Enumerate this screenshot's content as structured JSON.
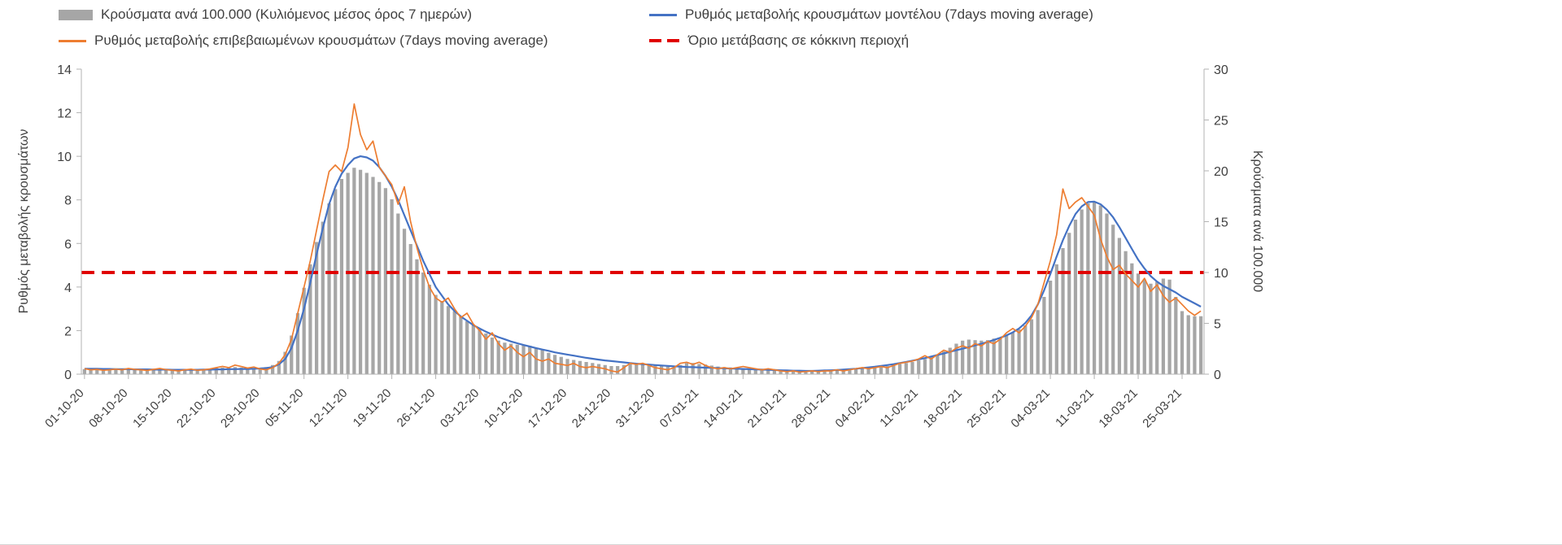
{
  "legend": {
    "bars": "Κρούσματα ανά 100.000 (Κυλιόμενος μέσος όρος 7 ημερών)",
    "model": "Ρυθμός μεταβολής κρουσμάτων μοντέλου (7days moving average)",
    "confirmed": "Ρυθμός μεταβολής επιβεβαιωμένων κρουσμάτων (7days moving average)",
    "threshold": "Όριο μετάβασης σε κόκκινη περιοχή"
  },
  "colors": {
    "bars": "#a6a6a6",
    "model": "#4472c4",
    "confirmed": "#ed7d31",
    "threshold": "#e00000"
  },
  "chart_data": {
    "type": "bar",
    "subtype": "combo-bar-line-daily",
    "left_axis": {
      "label": "Ρυθμός μεταβολής κρουσμάτων",
      "min": 0,
      "max": 14,
      "ticks": [
        0,
        2,
        4,
        6,
        8,
        10,
        12,
        14
      ]
    },
    "right_axis": {
      "label": "Κρούσματα ανά 100.000",
      "min": 0,
      "max": 30,
      "ticks": [
        0,
        5,
        10,
        15,
        20,
        25,
        30
      ]
    },
    "x_ticks": {
      "interval_days": 7,
      "labels": [
        "01-10-20",
        "08-10-20",
        "15-10-20",
        "22-10-20",
        "29-10-20",
        "05-11-20",
        "12-11-20",
        "19-11-20",
        "26-11-20",
        "03-12-20",
        "10-12-20",
        "17-12-20",
        "24-12-20",
        "31-12-20",
        "07-01-21",
        "14-01-21",
        "21-01-21",
        "28-01-21",
        "04-02-21",
        "11-02-21",
        "18-02-21",
        "25-02-21",
        "04-03-21",
        "11-03-21",
        "18-03-21",
        "25-03-21"
      ]
    },
    "threshold": {
      "name": "Όριο μετάβασης σε κόκκινη περιοχή",
      "axis": "right",
      "value": 10,
      "color": "#e00000"
    },
    "bars": {
      "name": "Κρούσματα ανά 100.000 (Κυλιόμενος μέσος όρος 7 ημερών)",
      "axis": "right",
      "color": "#a6a6a6",
      "values": [
        0.5,
        0.5,
        0.5,
        0.5,
        0.5,
        0.5,
        0.5,
        0.5,
        0.5,
        0.5,
        0.5,
        0.5,
        0.5,
        0.5,
        0.45,
        0.45,
        0.45,
        0.45,
        0.5,
        0.5,
        0.55,
        0.6,
        0.65,
        0.7,
        0.7,
        0.65,
        0.6,
        0.6,
        0.6,
        0.7,
        0.9,
        1.3,
        2.2,
        3.8,
        6.0,
        8.5,
        10.8,
        13.0,
        15.0,
        16.8,
        18.2,
        19.2,
        19.8,
        20.3,
        20.1,
        19.8,
        19.4,
        18.9,
        18.3,
        17.2,
        15.8,
        14.3,
        12.8,
        11.3,
        10.0,
        8.8,
        7.8,
        7.2,
        6.7,
        6.2,
        5.7,
        5.2,
        4.8,
        4.4,
        4.0,
        3.6,
        3.3,
        3.1,
        3.0,
        2.9,
        2.9,
        2.8,
        2.6,
        2.4,
        2.1,
        1.9,
        1.7,
        1.5,
        1.4,
        1.3,
        1.2,
        1.1,
        1.0,
        0.9,
        0.8,
        0.8,
        0.9,
        1.0,
        1.0,
        1.0,
        0.9,
        0.85,
        0.8,
        0.75,
        0.75,
        0.9,
        1.1,
        1.1,
        1.0,
        0.95,
        0.85,
        0.75,
        0.7,
        0.65,
        0.6,
        0.55,
        0.5,
        0.5,
        0.45,
        0.45,
        0.4,
        0.4,
        0.38,
        0.35,
        0.33,
        0.33,
        0.33,
        0.33,
        0.35,
        0.35,
        0.38,
        0.4,
        0.45,
        0.5,
        0.55,
        0.6,
        0.65,
        0.72,
        0.8,
        0.9,
        1.0,
        1.1,
        1.2,
        1.35,
        1.5,
        1.7,
        1.95,
        2.25,
        2.6,
        3.0,
        3.3,
        3.4,
        3.35,
        3.3,
        3.35,
        3.5,
        3.6,
        3.85,
        4.1,
        4.4,
        4.8,
        5.4,
        6.3,
        7.6,
        9.2,
        10.8,
        12.4,
        13.9,
        15.2,
        16.2,
        16.8,
        17.0,
        16.6,
        15.8,
        14.7,
        13.4,
        12.1,
        10.9,
        9.9,
        9.3,
        8.9,
        9.1,
        9.4,
        9.3,
        7.6,
        6.2,
        5.8,
        5.7,
        5.7
      ]
    },
    "series": [
      {
        "id": "model",
        "name": "Ρυθμός μεταβολής κρουσμάτων μοντέλου (7days moving average)",
        "axis": "left",
        "color": "#4472c4",
        "values": [
          0.25,
          0.25,
          0.25,
          0.24,
          0.24,
          0.23,
          0.23,
          0.23,
          0.22,
          0.22,
          0.22,
          0.21,
          0.21,
          0.21,
          0.2,
          0.2,
          0.2,
          0.2,
          0.2,
          0.21,
          0.21,
          0.22,
          0.22,
          0.23,
          0.23,
          0.24,
          0.24,
          0.25,
          0.26,
          0.28,
          0.32,
          0.45,
          0.7,
          1.2,
          2.0,
          3.0,
          4.2,
          5.5,
          6.7,
          7.8,
          8.6,
          9.2,
          9.6,
          9.9,
          10.0,
          9.95,
          9.8,
          9.5,
          9.1,
          8.6,
          8.0,
          7.3,
          6.6,
          5.9,
          5.2,
          4.6,
          4.0,
          3.6,
          3.2,
          2.9,
          2.65,
          2.45,
          2.25,
          2.1,
          1.95,
          1.82,
          1.7,
          1.6,
          1.5,
          1.42,
          1.34,
          1.27,
          1.2,
          1.13,
          1.07,
          1.0,
          0.95,
          0.9,
          0.85,
          0.8,
          0.75,
          0.71,
          0.67,
          0.63,
          0.6,
          0.57,
          0.54,
          0.51,
          0.48,
          0.46,
          0.44,
          0.42,
          0.4,
          0.38,
          0.36,
          0.35,
          0.33,
          0.32,
          0.31,
          0.3,
          0.29,
          0.28,
          0.27,
          0.26,
          0.25,
          0.24,
          0.23,
          0.22,
          0.21,
          0.2,
          0.19,
          0.18,
          0.17,
          0.16,
          0.16,
          0.15,
          0.15,
          0.16,
          0.17,
          0.18,
          0.19,
          0.21,
          0.23,
          0.25,
          0.28,
          0.31,
          0.34,
          0.38,
          0.42,
          0.46,
          0.51,
          0.56,
          0.62,
          0.68,
          0.74,
          0.81,
          0.88,
          0.95,
          1.03,
          1.1,
          1.17,
          1.24,
          1.32,
          1.4,
          1.48,
          1.57,
          1.67,
          1.78,
          1.92,
          2.1,
          2.35,
          2.7,
          3.2,
          3.85,
          4.6,
          5.4,
          6.15,
          6.8,
          7.35,
          7.7,
          7.9,
          7.92,
          7.8,
          7.55,
          7.2,
          6.75,
          6.25,
          5.75,
          5.25,
          4.85,
          4.5,
          4.25,
          4.05,
          3.9,
          3.75,
          3.55,
          3.4,
          3.25,
          3.1
        ]
      },
      {
        "id": "confirmed",
        "name": "Ρυθμός μεταβολής επιβεβαιωμένων κρουσμάτων (7days moving average)",
        "axis": "left",
        "color": "#ed7d31",
        "values": [
          0.25,
          0.2,
          0.22,
          0.18,
          0.2,
          0.23,
          0.2,
          0.26,
          0.22,
          0.2,
          0.17,
          0.22,
          0.26,
          0.21,
          0.18,
          0.15,
          0.2,
          0.23,
          0.18,
          0.2,
          0.24,
          0.3,
          0.36,
          0.3,
          0.42,
          0.35,
          0.28,
          0.33,
          0.24,
          0.2,
          0.3,
          0.5,
          0.9,
          1.6,
          2.8,
          4.0,
          5.2,
          6.6,
          8.0,
          9.3,
          9.6,
          9.3,
          10.4,
          12.4,
          11.0,
          10.3,
          10.7,
          9.5,
          9.1,
          8.7,
          7.8,
          8.6,
          7.0,
          5.8,
          4.8,
          4.0,
          3.5,
          3.3,
          3.5,
          3.0,
          2.6,
          2.8,
          2.3,
          2.0,
          1.6,
          1.9,
          1.4,
          1.1,
          1.3,
          1.0,
          0.8,
          1.0,
          0.7,
          0.6,
          0.7,
          0.5,
          0.45,
          0.4,
          0.5,
          0.35,
          0.3,
          0.35,
          0.3,
          0.25,
          0.15,
          0.1,
          0.3,
          0.5,
          0.45,
          0.5,
          0.4,
          0.3,
          0.25,
          0.2,
          0.3,
          0.5,
          0.55,
          0.45,
          0.55,
          0.4,
          0.3,
          0.25,
          0.3,
          0.25,
          0.3,
          0.35,
          0.3,
          0.25,
          0.2,
          0.25,
          0.2,
          0.15,
          0.12,
          0.15,
          0.1,
          0.12,
          0.15,
          0.12,
          0.15,
          0.15,
          0.2,
          0.15,
          0.2,
          0.25,
          0.3,
          0.25,
          0.3,
          0.35,
          0.3,
          0.4,
          0.5,
          0.55,
          0.6,
          0.7,
          0.85,
          0.7,
          0.9,
          1.1,
          1.0,
          1.2,
          1.3,
          1.2,
          1.4,
          1.3,
          1.5,
          1.4,
          1.6,
          1.9,
          2.1,
          1.9,
          2.2,
          2.6,
          3.2,
          4.2,
          5.2,
          6.4,
          8.5,
          7.6,
          7.9,
          8.1,
          7.7,
          7.3,
          6.2,
          5.4,
          4.8,
          5.0,
          4.6,
          4.3,
          4.0,
          4.4,
          3.8,
          4.1,
          3.6,
          3.3,
          3.5,
          3.2,
          2.9,
          2.7,
          2.9
        ]
      }
    ]
  }
}
